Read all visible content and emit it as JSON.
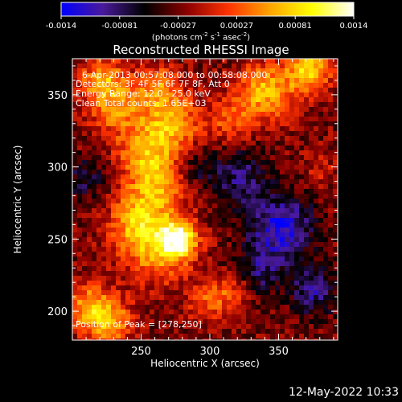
{
  "chart_data": {
    "type": "heatmap",
    "title": "Reconstructed RHESSI Image",
    "xlabel": "Heliocentric X (arcsec)",
    "ylabel": "Heliocentric Y (arcsec)",
    "xlim": [
      200,
      393
    ],
    "ylim": [
      180,
      375
    ],
    "x_ticks": [
      250,
      300,
      350
    ],
    "y_ticks": [
      200,
      250,
      300,
      350
    ],
    "colorbar": {
      "ticks": [
        "-0.0014",
        "-0.00081",
        "-0.00027",
        "0.00027",
        "0.00081",
        "0.0014"
      ],
      "range": [
        -0.0014,
        0.0014
      ],
      "unit_prefix": "(photons cm",
      "unit_sup1": "-2",
      "unit_mid1": " s",
      "unit_sup2": "-1",
      "unit_mid2": " asec",
      "unit_sup3": "-2",
      "unit_suffix": ")",
      "colormap": [
        "#0000ff",
        "#4a1a9a",
        "#000000",
        "#8a0000",
        "#ff3300",
        "#ffa500",
        "#ffff00",
        "#ffffff"
      ]
    },
    "annotations": {
      "time": "6-Apr-2013 00:57:08.000 to 00:58:08.000",
      "detectors": "Detectors: 3F 4F 5F 6F 7F 8F, Att 0",
      "energy": "Energy Range: 12.0 - 25.0 keV",
      "clean": "Clean     Total counts: 1.65E+03",
      "peak": "Position of Peak = [278,250]"
    },
    "peak": {
      "x": 278,
      "y": 250
    },
    "emission_sources": [
      {
        "x": 278,
        "y": 250,
        "amp": 1.0,
        "sigma": 9
      },
      {
        "x": 262,
        "y": 243,
        "amp": 0.6,
        "sigma": 16
      },
      {
        "x": 246,
        "y": 262,
        "amp": 0.55,
        "sigma": 14
      },
      {
        "x": 262,
        "y": 288,
        "amp": 0.6,
        "sigma": 15
      },
      {
        "x": 252,
        "y": 312,
        "amp": 0.5,
        "sigma": 13
      },
      {
        "x": 273,
        "y": 330,
        "amp": 0.65,
        "sigma": 14
      },
      {
        "x": 233,
        "y": 340,
        "amp": 0.45,
        "sigma": 14
      },
      {
        "x": 222,
        "y": 360,
        "amp": 0.55,
        "sigma": 12
      },
      {
        "x": 262,
        "y": 355,
        "amp": 0.5,
        "sigma": 11
      },
      {
        "x": 340,
        "y": 352,
        "amp": 0.7,
        "sigma": 14
      },
      {
        "x": 372,
        "y": 367,
        "amp": 0.8,
        "sigma": 11
      },
      {
        "x": 315,
        "y": 332,
        "amp": 0.4,
        "sigma": 10
      },
      {
        "x": 213,
        "y": 203,
        "amp": 0.6,
        "sigma": 12
      },
      {
        "x": 228,
        "y": 192,
        "amp": 0.55,
        "sigma": 11
      },
      {
        "x": 298,
        "y": 208,
        "amp": 0.4,
        "sigma": 10
      },
      {
        "x": 318,
        "y": 214,
        "amp": 0.35,
        "sigma": 9
      },
      {
        "x": 380,
        "y": 298,
        "amp": 0.2,
        "sigma": 8
      },
      {
        "x": 352,
        "y": 258,
        "amp": -0.7,
        "sigma": 16
      },
      {
        "x": 322,
        "y": 292,
        "amp": -0.45,
        "sigma": 14
      },
      {
        "x": 376,
        "y": 214,
        "amp": -0.5,
        "sigma": 12
      },
      {
        "x": 336,
        "y": 228,
        "amp": -0.4,
        "sigma": 12
      },
      {
        "x": 210,
        "y": 292,
        "amp": -0.35,
        "sigma": 10
      },
      {
        "x": 290,
        "y": 300,
        "amp": -0.3,
        "sigma": 10
      }
    ]
  },
  "footer": {
    "timestamp": "12-May-2022 10:33"
  }
}
